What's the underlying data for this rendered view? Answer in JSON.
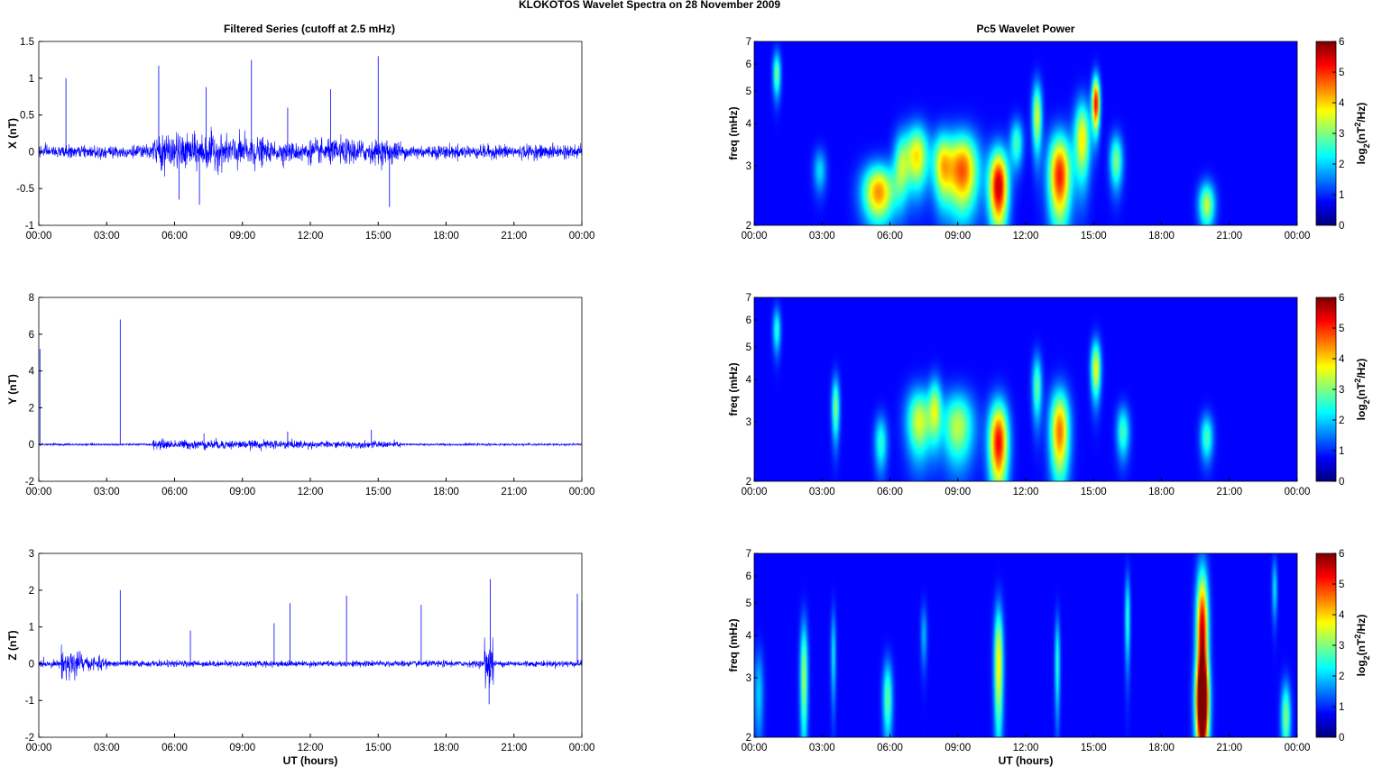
{
  "figure_title": "KLOKOTOS Wavelet Spectra on 28 November  2009",
  "left_title": "Filtered Series (cutoff at 2.5 mHz)",
  "right_title": "Pc5 Wavelet Power",
  "x_ticks": [
    "00:00",
    "03:00",
    "06:00",
    "09:00",
    "12:00",
    "15:00",
    "18:00",
    "21:00",
    "00:00"
  ],
  "x_label": "UT (hours)",
  "freq_label": "freq (mHz)",
  "freq_ticks": [
    "2",
    "3",
    "4",
    "5",
    "6",
    "7"
  ],
  "colorbar_ticks": [
    "0",
    "1",
    "2",
    "3",
    "4",
    "5",
    "6"
  ],
  "colorbar_label": {
    "base": "log",
    "sub": "2",
    "open": "(nT",
    "sup": "2",
    "close": "/Hz)"
  },
  "colors": {
    "series": "#0000ff",
    "background": "#00008f"
  },
  "chart_data": [
    {
      "type": "line",
      "title": "Filtered Series (cutoff at 2.5 mHz)",
      "ylabel": "X (nT)",
      "xlabel": "",
      "ylim": [
        -1,
        1.5
      ],
      "y_ticks": [
        -1,
        -0.5,
        0,
        0.5,
        1,
        1.5
      ],
      "x_range_hours": [
        0,
        24
      ],
      "series": [
        {
          "values": {
            "base_noise": 0.07,
            "noise_segments": [
              [
                0,
                5,
                0.07
              ],
              [
                5,
                8,
                0.2
              ],
              [
                8,
                10,
                0.18
              ],
              [
                10,
                12,
                0.12
              ],
              [
                12,
                16,
                0.14
              ],
              [
                16,
                24,
                0.08
              ]
            ],
            "spikes": [
              [
                1.2,
                1.0
              ],
              [
                5.3,
                1.17
              ],
              [
                7.4,
                0.88
              ],
              [
                7.1,
                -0.72
              ],
              [
                9.4,
                1.25
              ],
              [
                12.9,
                0.85
              ],
              [
                15.0,
                1.3
              ],
              [
                15.5,
                -0.75
              ],
              [
                6.2,
                -0.65
              ],
              [
                11.0,
                0.6
              ]
            ]
          }
        }
      ]
    },
    {
      "type": "line",
      "ylabel": "Y (nT)",
      "xlabel": "",
      "ylim": [
        -2,
        8
      ],
      "y_ticks": [
        -2,
        0,
        2,
        4,
        6,
        8
      ],
      "x_range_hours": [
        0,
        24
      ],
      "series": [
        {
          "values": {
            "base_noise": 0.05,
            "noise_segments": [
              [
                0,
                5,
                0.05
              ],
              [
                5,
                8,
                0.22
              ],
              [
                8,
                12,
                0.2
              ],
              [
                12,
                16,
                0.15
              ],
              [
                16,
                24,
                0.05
              ]
            ],
            "spikes": [
              [
                0.05,
                5.2
              ],
              [
                3.6,
                6.8
              ],
              [
                7.3,
                0.6
              ],
              [
                11.0,
                0.7
              ],
              [
                14.7,
                0.8
              ]
            ]
          }
        }
      ]
    },
    {
      "type": "line",
      "ylabel": "Z (nT)",
      "xlabel": "UT (hours)",
      "ylim": [
        -2,
        3
      ],
      "y_ticks": [
        -2,
        -1,
        0,
        1,
        2,
        3
      ],
      "x_range_hours": [
        0,
        24
      ],
      "series": [
        {
          "values": {
            "base_noise": 0.06,
            "noise_segments": [
              [
                0,
                1,
                0.08
              ],
              [
                1,
                1.9,
                0.35
              ],
              [
                1.9,
                3,
                0.15
              ],
              [
                3,
                24,
                0.07
              ],
              [
                19.7,
                20.1,
                0.6
              ]
            ],
            "spikes": [
              [
                3.6,
                2.0
              ],
              [
                6.7,
                0.9
              ],
              [
                10.4,
                1.1
              ],
              [
                11.1,
                1.65
              ],
              [
                13.6,
                1.85
              ],
              [
                16.9,
                1.6
              ],
              [
                19.95,
                2.3
              ],
              [
                19.9,
                -1.1
              ],
              [
                23.8,
                1.9
              ],
              [
                24.0,
                1.7
              ]
            ]
          }
        }
      ]
    },
    {
      "type": "heatmap",
      "title": "Pc5 Wavelet Power",
      "ylabel": "freq (mHz)",
      "xlabel": "",
      "y_scale": "log",
      "ylim": [
        2,
        7
      ],
      "color_range": [
        0,
        6
      ],
      "colormap": "jet",
      "x_range_hours": [
        0,
        24
      ],
      "features": [
        [
          5.5,
          2.5,
          0.5,
          0.35,
          4.2
        ],
        [
          7.2,
          3.2,
          0.35,
          0.5,
          3.6
        ],
        [
          9.2,
          2.9,
          0.5,
          0.55,
          4.6
        ],
        [
          10.8,
          2.6,
          0.3,
          0.5,
          5.6
        ],
        [
          13.5,
          2.8,
          0.35,
          0.6,
          5.0
        ],
        [
          15.1,
          4.6,
          0.12,
          0.6,
          5.2
        ],
        [
          14.5,
          3.6,
          0.25,
          0.7,
          3.5
        ],
        [
          12.5,
          4.2,
          0.15,
          0.7,
          3.2
        ],
        [
          20.0,
          2.3,
          0.25,
          0.25,
          3.0
        ],
        [
          1.0,
          5.6,
          0.12,
          0.6,
          2.5
        ],
        [
          16.0,
          3.1,
          0.2,
          0.4,
          2.6
        ],
        [
          8.3,
          3.0,
          0.3,
          0.5,
          3.0
        ],
        [
          11.6,
          3.5,
          0.2,
          0.4,
          2.2
        ],
        [
          6.5,
          3.0,
          0.25,
          0.5,
          2.4
        ],
        [
          2.9,
          2.9,
          0.2,
          0.3,
          1.5
        ]
      ]
    },
    {
      "type": "heatmap",
      "ylabel": "freq (mHz)",
      "xlabel": "",
      "y_scale": "log",
      "ylim": [
        2,
        7
      ],
      "color_range": [
        0,
        6
      ],
      "colormap": "jet",
      "x_range_hours": [
        0,
        24
      ],
      "features": [
        [
          10.8,
          2.6,
          0.3,
          0.55,
          5.2
        ],
        [
          13.5,
          2.8,
          0.3,
          0.6,
          4.4
        ],
        [
          7.3,
          3.0,
          0.4,
          0.5,
          3.2
        ],
        [
          9.0,
          2.9,
          0.5,
          0.5,
          3.0
        ],
        [
          15.1,
          4.3,
          0.15,
          0.6,
          3.4
        ],
        [
          3.6,
          3.3,
          0.12,
          0.5,
          2.6
        ],
        [
          5.6,
          2.6,
          0.2,
          0.35,
          2.0
        ],
        [
          12.5,
          3.8,
          0.15,
          0.6,
          2.4
        ],
        [
          20.0,
          2.7,
          0.2,
          0.3,
          2.2
        ],
        [
          1.0,
          5.6,
          0.12,
          0.6,
          2.0
        ],
        [
          16.3,
          2.8,
          0.2,
          0.35,
          2.2
        ],
        [
          8.0,
          3.3,
          0.2,
          0.5,
          2.4
        ]
      ]
    },
    {
      "type": "heatmap",
      "ylabel": "freq (mHz)",
      "xlabel": "UT (hours)",
      "y_scale": "log",
      "ylim": [
        2,
        7
      ],
      "color_range": [
        0,
        6
      ],
      "colormap": "jet",
      "x_range_hours": [
        0,
        24
      ],
      "features": [
        [
          19.8,
          3.9,
          0.18,
          1.5,
          5.8
        ],
        [
          19.8,
          2.5,
          0.2,
          0.5,
          5.6
        ],
        [
          10.8,
          3.3,
          0.14,
          1.0,
          3.6
        ],
        [
          2.2,
          3.0,
          0.12,
          0.9,
          2.8
        ],
        [
          5.9,
          2.6,
          0.15,
          0.5,
          2.4
        ],
        [
          23.5,
          2.3,
          0.15,
          0.4,
          2.6
        ],
        [
          16.5,
          4.5,
          0.08,
          1.0,
          2.0
        ],
        [
          13.4,
          3.3,
          0.08,
          0.8,
          2.0
        ],
        [
          3.5,
          3.5,
          0.08,
          0.8,
          1.6
        ],
        [
          0.2,
          2.7,
          0.15,
          0.6,
          1.4
        ],
        [
          7.5,
          4.0,
          0.1,
          0.6,
          1.2
        ],
        [
          23.0,
          5.5,
          0.08,
          0.8,
          1.6
        ]
      ]
    }
  ]
}
